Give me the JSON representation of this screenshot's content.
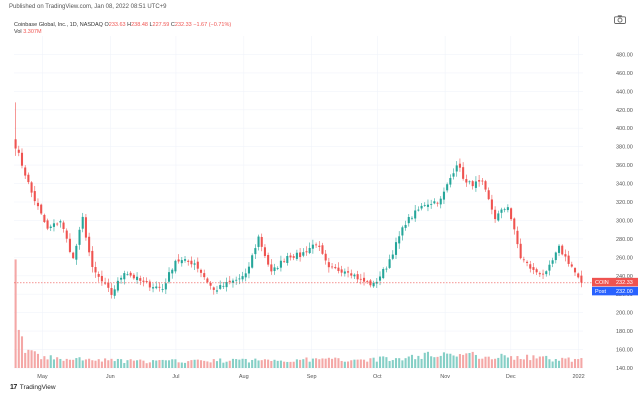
{
  "published": "Published on TradingView.com, Jan 08, 2022 08:51 UTC+9",
  "legend": {
    "title": "Coinbase Global, Inc., 1D, NASDAQ",
    "o_label": "O",
    "o_value": "233.63",
    "h_label": "H",
    "h_value": "238.48",
    "l_label": "L",
    "l_value": "227.59",
    "c_label": "C",
    "c_value": "232.33",
    "change": "−1.67 (−0.71%)",
    "vol_label": "Vol",
    "vol_value": "3.307M"
  },
  "price_labels": {
    "symbol": "COIN",
    "symbol_value": "232.33",
    "post": "Post",
    "post_value": "232.00"
  },
  "logo_text": "TradingView",
  "colors": {
    "up": "#26a69a",
    "down": "#ef5350",
    "up_vol": "#85cfc6",
    "down_vol": "#f4a7a6",
    "post": "#2962ff",
    "grid": "#f0f3fa"
  },
  "chart_data": {
    "type": "candlestick",
    "ylim": [
      140,
      500
    ],
    "y_ticks": [
      140,
      160,
      180,
      200,
      220,
      240,
      260,
      280,
      300,
      320,
      340,
      360,
      380,
      400,
      420,
      440,
      460,
      480
    ],
    "x_labels": [
      "May",
      "Jun",
      "Jul",
      "Aug",
      "Sep",
      "Oct",
      "Nov",
      "Dec",
      "2022"
    ],
    "keypoints": [
      {
        "d": 0,
        "p": 381
      },
      {
        "d": 5,
        "p": 330
      },
      {
        "d": 10,
        "p": 290
      },
      {
        "d": 14,
        "p": 300
      },
      {
        "d": 18,
        "p": 258
      },
      {
        "d": 21,
        "p": 302
      },
      {
        "d": 24,
        "p": 247
      },
      {
        "d": 30,
        "p": 220
      },
      {
        "d": 34,
        "p": 245
      },
      {
        "d": 40,
        "p": 232
      },
      {
        "d": 46,
        "p": 226
      },
      {
        "d": 50,
        "p": 257
      },
      {
        "d": 56,
        "p": 254
      },
      {
        "d": 62,
        "p": 224
      },
      {
        "d": 66,
        "p": 231
      },
      {
        "d": 72,
        "p": 240
      },
      {
        "d": 76,
        "p": 282
      },
      {
        "d": 80,
        "p": 243
      },
      {
        "d": 85,
        "p": 262
      },
      {
        "d": 89,
        "p": 262
      },
      {
        "d": 94,
        "p": 276
      },
      {
        "d": 98,
        "p": 247
      },
      {
        "d": 104,
        "p": 246
      },
      {
        "d": 108,
        "p": 235
      },
      {
        "d": 112,
        "p": 230
      },
      {
        "d": 116,
        "p": 250
      },
      {
        "d": 122,
        "p": 298
      },
      {
        "d": 128,
        "p": 318
      },
      {
        "d": 133,
        "p": 322
      },
      {
        "d": 138,
        "p": 362
      },
      {
        "d": 141,
        "p": 340
      },
      {
        "d": 146,
        "p": 340
      },
      {
        "d": 150,
        "p": 303
      },
      {
        "d": 154,
        "p": 316
      },
      {
        "d": 158,
        "p": 260
      },
      {
        "d": 162,
        "p": 245
      },
      {
        "d": 166,
        "p": 242
      },
      {
        "d": 170,
        "p": 270
      },
      {
        "d": 174,
        "p": 250
      },
      {
        "d": 177,
        "p": 230
      }
    ],
    "volume_keypoints": [
      {
        "d": 0,
        "v": 82
      },
      {
        "d": 1,
        "v": 28
      },
      {
        "d": 3,
        "v": 14
      },
      {
        "d": 6,
        "v": 10
      },
      {
        "d": 12,
        "v": 7
      },
      {
        "d": 40,
        "v": 5
      },
      {
        "d": 120,
        "v": 7
      },
      {
        "d": 132,
        "v": 11
      },
      {
        "d": 177,
        "v": 6
      }
    ],
    "volume_max": 90
  }
}
